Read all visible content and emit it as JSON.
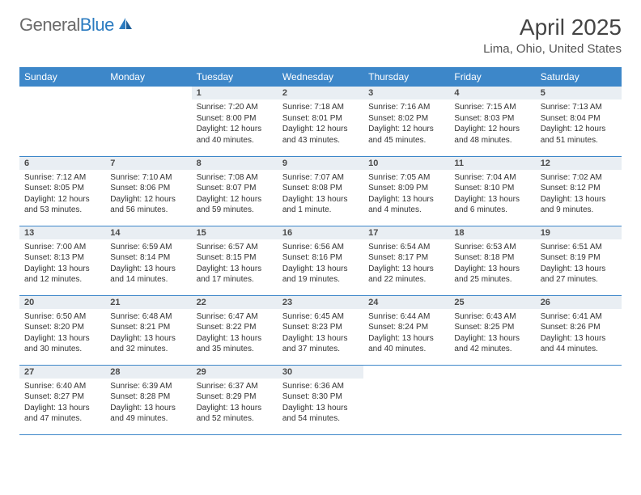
{
  "brand": {
    "text1": "General",
    "text2": "Blue",
    "icon_fill": "#2b7bc0"
  },
  "title": {
    "month_year": "April 2025",
    "location": "Lima, Ohio, United States"
  },
  "colors": {
    "header_bg": "#3d87c9",
    "header_text": "#ffffff",
    "daynum_bg": "#e9eef3",
    "row_border": "#3d87c9",
    "body_text": "#333333"
  },
  "day_labels": [
    "Sunday",
    "Monday",
    "Tuesday",
    "Wednesday",
    "Thursday",
    "Friday",
    "Saturday"
  ],
  "weeks": [
    [
      null,
      null,
      {
        "n": "1",
        "sunrise": "Sunrise: 7:20 AM",
        "sunset": "Sunset: 8:00 PM",
        "daylight": "Daylight: 12 hours and 40 minutes."
      },
      {
        "n": "2",
        "sunrise": "Sunrise: 7:18 AM",
        "sunset": "Sunset: 8:01 PM",
        "daylight": "Daylight: 12 hours and 43 minutes."
      },
      {
        "n": "3",
        "sunrise": "Sunrise: 7:16 AM",
        "sunset": "Sunset: 8:02 PM",
        "daylight": "Daylight: 12 hours and 45 minutes."
      },
      {
        "n": "4",
        "sunrise": "Sunrise: 7:15 AM",
        "sunset": "Sunset: 8:03 PM",
        "daylight": "Daylight: 12 hours and 48 minutes."
      },
      {
        "n": "5",
        "sunrise": "Sunrise: 7:13 AM",
        "sunset": "Sunset: 8:04 PM",
        "daylight": "Daylight: 12 hours and 51 minutes."
      }
    ],
    [
      {
        "n": "6",
        "sunrise": "Sunrise: 7:12 AM",
        "sunset": "Sunset: 8:05 PM",
        "daylight": "Daylight: 12 hours and 53 minutes."
      },
      {
        "n": "7",
        "sunrise": "Sunrise: 7:10 AM",
        "sunset": "Sunset: 8:06 PM",
        "daylight": "Daylight: 12 hours and 56 minutes."
      },
      {
        "n": "8",
        "sunrise": "Sunrise: 7:08 AM",
        "sunset": "Sunset: 8:07 PM",
        "daylight": "Daylight: 12 hours and 59 minutes."
      },
      {
        "n": "9",
        "sunrise": "Sunrise: 7:07 AM",
        "sunset": "Sunset: 8:08 PM",
        "daylight": "Daylight: 13 hours and 1 minute."
      },
      {
        "n": "10",
        "sunrise": "Sunrise: 7:05 AM",
        "sunset": "Sunset: 8:09 PM",
        "daylight": "Daylight: 13 hours and 4 minutes."
      },
      {
        "n": "11",
        "sunrise": "Sunrise: 7:04 AM",
        "sunset": "Sunset: 8:10 PM",
        "daylight": "Daylight: 13 hours and 6 minutes."
      },
      {
        "n": "12",
        "sunrise": "Sunrise: 7:02 AM",
        "sunset": "Sunset: 8:12 PM",
        "daylight": "Daylight: 13 hours and 9 minutes."
      }
    ],
    [
      {
        "n": "13",
        "sunrise": "Sunrise: 7:00 AM",
        "sunset": "Sunset: 8:13 PM",
        "daylight": "Daylight: 13 hours and 12 minutes."
      },
      {
        "n": "14",
        "sunrise": "Sunrise: 6:59 AM",
        "sunset": "Sunset: 8:14 PM",
        "daylight": "Daylight: 13 hours and 14 minutes."
      },
      {
        "n": "15",
        "sunrise": "Sunrise: 6:57 AM",
        "sunset": "Sunset: 8:15 PM",
        "daylight": "Daylight: 13 hours and 17 minutes."
      },
      {
        "n": "16",
        "sunrise": "Sunrise: 6:56 AM",
        "sunset": "Sunset: 8:16 PM",
        "daylight": "Daylight: 13 hours and 19 minutes."
      },
      {
        "n": "17",
        "sunrise": "Sunrise: 6:54 AM",
        "sunset": "Sunset: 8:17 PM",
        "daylight": "Daylight: 13 hours and 22 minutes."
      },
      {
        "n": "18",
        "sunrise": "Sunrise: 6:53 AM",
        "sunset": "Sunset: 8:18 PM",
        "daylight": "Daylight: 13 hours and 25 minutes."
      },
      {
        "n": "19",
        "sunrise": "Sunrise: 6:51 AM",
        "sunset": "Sunset: 8:19 PM",
        "daylight": "Daylight: 13 hours and 27 minutes."
      }
    ],
    [
      {
        "n": "20",
        "sunrise": "Sunrise: 6:50 AM",
        "sunset": "Sunset: 8:20 PM",
        "daylight": "Daylight: 13 hours and 30 minutes."
      },
      {
        "n": "21",
        "sunrise": "Sunrise: 6:48 AM",
        "sunset": "Sunset: 8:21 PM",
        "daylight": "Daylight: 13 hours and 32 minutes."
      },
      {
        "n": "22",
        "sunrise": "Sunrise: 6:47 AM",
        "sunset": "Sunset: 8:22 PM",
        "daylight": "Daylight: 13 hours and 35 minutes."
      },
      {
        "n": "23",
        "sunrise": "Sunrise: 6:45 AM",
        "sunset": "Sunset: 8:23 PM",
        "daylight": "Daylight: 13 hours and 37 minutes."
      },
      {
        "n": "24",
        "sunrise": "Sunrise: 6:44 AM",
        "sunset": "Sunset: 8:24 PM",
        "daylight": "Daylight: 13 hours and 40 minutes."
      },
      {
        "n": "25",
        "sunrise": "Sunrise: 6:43 AM",
        "sunset": "Sunset: 8:25 PM",
        "daylight": "Daylight: 13 hours and 42 minutes."
      },
      {
        "n": "26",
        "sunrise": "Sunrise: 6:41 AM",
        "sunset": "Sunset: 8:26 PM",
        "daylight": "Daylight: 13 hours and 44 minutes."
      }
    ],
    [
      {
        "n": "27",
        "sunrise": "Sunrise: 6:40 AM",
        "sunset": "Sunset: 8:27 PM",
        "daylight": "Daylight: 13 hours and 47 minutes."
      },
      {
        "n": "28",
        "sunrise": "Sunrise: 6:39 AM",
        "sunset": "Sunset: 8:28 PM",
        "daylight": "Daylight: 13 hours and 49 minutes."
      },
      {
        "n": "29",
        "sunrise": "Sunrise: 6:37 AM",
        "sunset": "Sunset: 8:29 PM",
        "daylight": "Daylight: 13 hours and 52 minutes."
      },
      {
        "n": "30",
        "sunrise": "Sunrise: 6:36 AM",
        "sunset": "Sunset: 8:30 PM",
        "daylight": "Daylight: 13 hours and 54 minutes."
      },
      null,
      null,
      null
    ]
  ]
}
